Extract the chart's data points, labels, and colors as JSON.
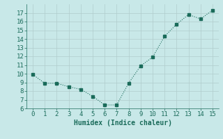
{
  "x": [
    0,
    1,
    2,
    3,
    4,
    5,
    6,
    7,
    8,
    9,
    10,
    11,
    12,
    13,
    14,
    15
  ],
  "y": [
    9.9,
    8.9,
    8.9,
    8.5,
    8.2,
    7.4,
    6.4,
    6.4,
    8.9,
    10.9,
    11.9,
    14.3,
    15.7,
    16.8,
    16.3,
    17.3
  ],
  "line_color": "#1a6b5a",
  "marker_color": "#1a6b5a",
  "bg_color": "#c8e8e8",
  "grid_color": "#b0cccc",
  "xlabel": "Humidex (Indice chaleur)",
  "xlim": [
    -0.5,
    15.5
  ],
  "ylim": [
    6,
    18
  ],
  "xticks": [
    0,
    1,
    2,
    3,
    4,
    5,
    6,
    7,
    8,
    9,
    10,
    11,
    12,
    13,
    14,
    15
  ],
  "yticks": [
    6,
    7,
    8,
    9,
    10,
    11,
    12,
    13,
    14,
    15,
    16,
    17
  ],
  "xlabel_fontsize": 7,
  "tick_fontsize": 6.5
}
